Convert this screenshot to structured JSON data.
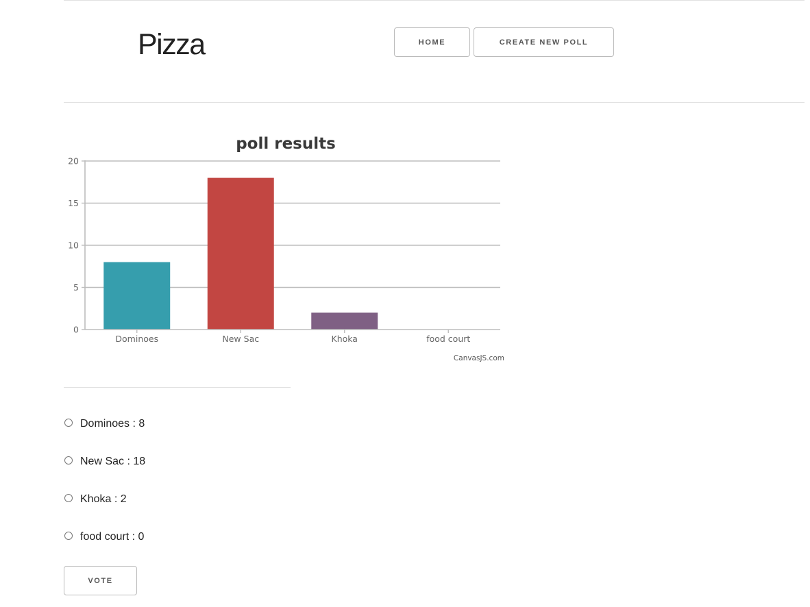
{
  "poll": {
    "title": "Pizza"
  },
  "nav": {
    "home_label": "HOME",
    "create_label": "CREATE NEW POLL"
  },
  "chart_data": {
    "type": "bar",
    "title": "poll results",
    "categories": [
      "Dominoes",
      "New Sac",
      "Khoka",
      "food court"
    ],
    "values": [
      8,
      18,
      2,
      0
    ],
    "colors": [
      "#369EAD",
      "#C24642",
      "#7F6084",
      "#86B402"
    ],
    "ylim": [
      0,
      20
    ],
    "yticks": [
      0,
      5,
      10,
      15,
      20
    ],
    "grid": true,
    "credit": "CanvasJS.com"
  },
  "options": [
    {
      "text": "Dominoes : 8"
    },
    {
      "text": "New Sac : 18"
    },
    {
      "text": "Khoka : 2"
    },
    {
      "text": "food court : 0"
    }
  ],
  "actions": {
    "vote_label": "VOTE"
  }
}
